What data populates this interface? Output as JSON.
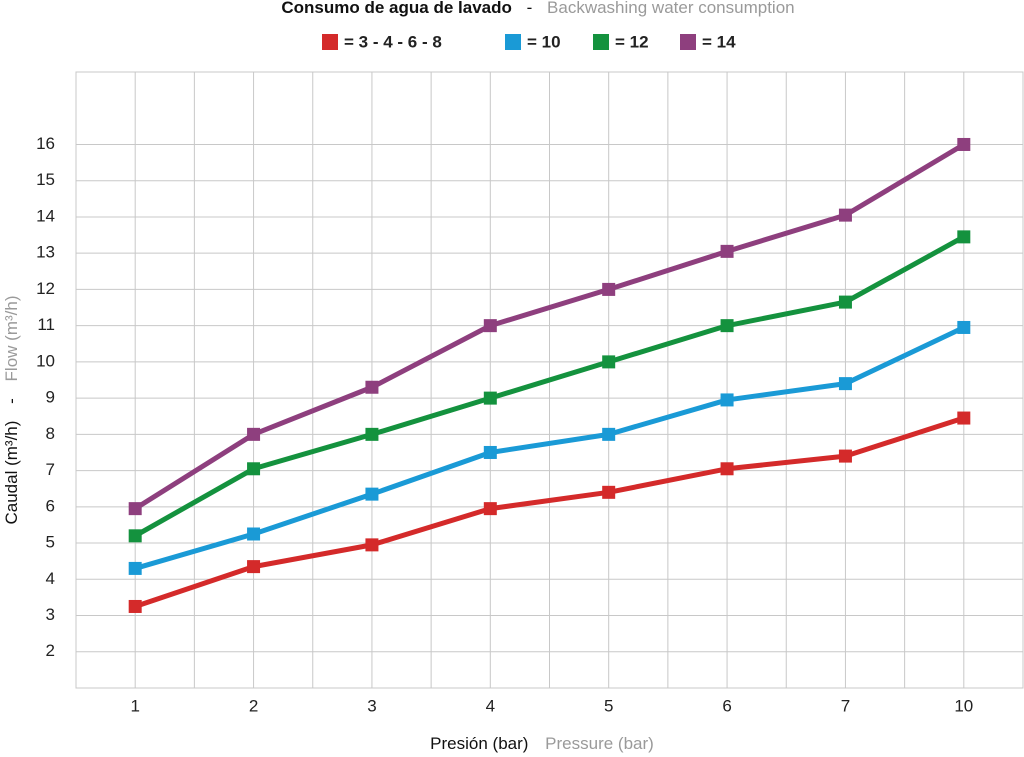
{
  "chart_data": {
    "type": "line",
    "title": "Consumo de agua de lavado",
    "title_separator": "-",
    "subtitle": "Backwashing water consumption",
    "xlabel": "Presión (bar)",
    "xlabel_secondary": "Pressure (bar)",
    "ylabel": "Caudal (m³/h)",
    "ylabel_separator": "-",
    "ylabel_secondary": "Flow (m³/h)",
    "categories": [
      "1",
      "2",
      "3",
      "4",
      "5",
      "6",
      "7",
      "10"
    ],
    "series": [
      {
        "name": "= 3 - 4 - 6 - 8",
        "color": "#d42a2a",
        "values": [
          3.25,
          4.35,
          4.95,
          5.95,
          6.4,
          7.05,
          7.4,
          8.45
        ]
      },
      {
        "name": "= 10",
        "color": "#1a9ad6",
        "values": [
          4.3,
          5.25,
          6.35,
          7.5,
          8.0,
          8.95,
          9.4,
          10.95
        ]
      },
      {
        "name": "= 12",
        "color": "#14923e",
        "values": [
          5.2,
          7.05,
          8.0,
          9.0,
          10.0,
          11.0,
          11.65,
          13.45
        ]
      },
      {
        "name": "= 14",
        "color": "#8e3f7e",
        "values": [
          5.95,
          8.0,
          9.3,
          11.0,
          12.0,
          13.05,
          14.05,
          16.0
        ]
      }
    ],
    "ylim": [
      1,
      18
    ],
    "yticks": [
      2,
      3,
      4,
      5,
      6,
      7,
      8,
      9,
      10,
      11,
      12,
      13,
      14,
      15,
      16
    ],
    "grid": true
  }
}
